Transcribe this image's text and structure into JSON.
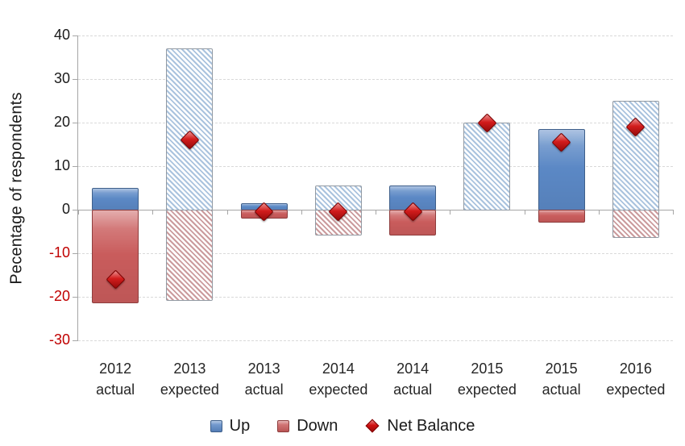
{
  "chart_data": {
    "type": "bar",
    "title": "",
    "ylabel": "Pecentage of respondents",
    "xlabel": "",
    "ylim": [
      -30,
      40
    ],
    "ytick_step": 10,
    "grid": "horizontal-dashed-major",
    "legend_position": "bottom",
    "categories": [
      {
        "year": "2012",
        "kind": "actual"
      },
      {
        "year": "2013",
        "kind": "expected"
      },
      {
        "year": "2013",
        "kind": "actual"
      },
      {
        "year": "2014",
        "kind": "expected"
      },
      {
        "year": "2014",
        "kind": "actual"
      },
      {
        "year": "2015",
        "kind": "expected"
      },
      {
        "year": "2015",
        "kind": "actual"
      },
      {
        "year": "2016",
        "kind": "expected"
      }
    ],
    "hatched": [
      false,
      true,
      false,
      true,
      false,
      true,
      false,
      true
    ],
    "series": [
      {
        "name": "Up",
        "type": "bar",
        "values": [
          5,
          37,
          1.5,
          5.5,
          5.5,
          20,
          18.5,
          25
        ]
      },
      {
        "name": "Down",
        "type": "bar",
        "values": [
          -21.5,
          -21,
          -2,
          -6,
          -6,
          0,
          -3,
          -6.5
        ]
      },
      {
        "name": "Net Balance",
        "type": "scatter",
        "marker": "diamond",
        "values": [
          -16,
          16,
          -0.5,
          -0.5,
          -0.5,
          20,
          15.5,
          19
        ]
      }
    ],
    "colors": {
      "up_fill": "#5b88c5",
      "up_border": "#3e5f8a",
      "down_fill": "#c95c5c",
      "down_border": "#8e3d3d",
      "up_hatch_stripe": "#aac3de",
      "down_hatch_stripe": "#cb9b9d",
      "hatch_border": "#929aa3",
      "marker_fill": "#d01010",
      "marker_border": "#7a0000",
      "negative_tick_label": "#c00000",
      "positive_tick_label": "#1a1a1a",
      "gridline": "#d9d9d9",
      "axis_line": "#a6a6a6"
    }
  }
}
